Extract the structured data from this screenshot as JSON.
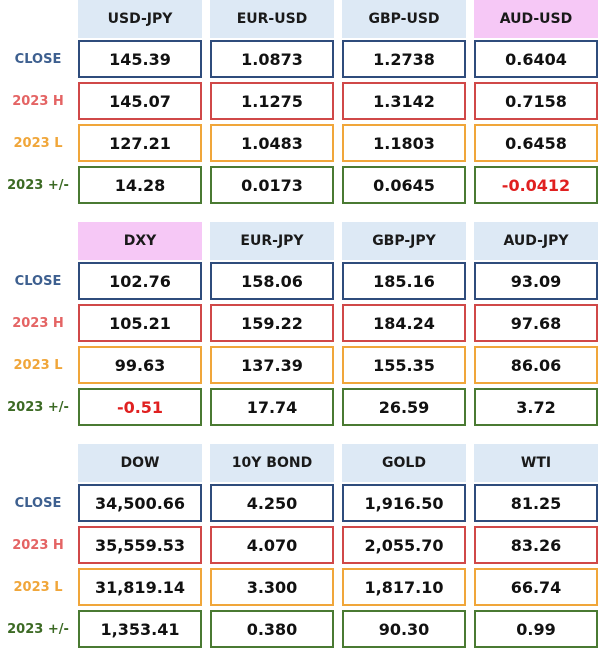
{
  "blocks": [
    {
      "headers": [
        "USD-JPY",
        "EUR-USD",
        "GBP-USD",
        "AUD-USD"
      ],
      "rows": [
        {
          "label": "CLOSE",
          "values": [
            "145.39",
            "1.0873",
            "1.2738",
            "0.6404"
          ]
        },
        {
          "label": "2023 H",
          "values": [
            "145.07",
            "1.1275",
            "1.3142",
            "0.7158"
          ]
        },
        {
          "label": "2023 L",
          "values": [
            "127.21",
            "1.0483",
            "1.1803",
            "0.6458"
          ]
        },
        {
          "label": "2023 +/-",
          "values": [
            "14.28",
            "0.0173",
            "0.0645",
            "-0.0412"
          ]
        }
      ]
    },
    {
      "headers": [
        "DXY",
        "EUR-JPY",
        "GBP-JPY",
        "AUD-JPY"
      ],
      "rows": [
        {
          "label": "CLOSE",
          "values": [
            "102.76",
            "158.06",
            "185.16",
            "93.09"
          ]
        },
        {
          "label": "2023 H",
          "values": [
            "105.21",
            "159.22",
            "184.24",
            "97.68"
          ]
        },
        {
          "label": "2023 L",
          "values": [
            "99.63",
            "137.39",
            "155.35",
            "86.06"
          ]
        },
        {
          "label": "2023 +/-",
          "values": [
            "-0.51",
            "17.74",
            "26.59",
            "3.72"
          ]
        }
      ]
    },
    {
      "headers": [
        "DOW",
        "10Y BOND",
        "GOLD",
        "WTI"
      ],
      "rows": [
        {
          "label": "CLOSE",
          "values": [
            "34,500.66",
            "4.250",
            "1,916.50",
            "81.25"
          ]
        },
        {
          "label": "2023 H",
          "values": [
            "35,559.53",
            "4.070",
            "2,055.70",
            "83.26"
          ]
        },
        {
          "label": "2023 L",
          "values": [
            "31,819.14",
            "3.300",
            "1,817.10",
            "66.74"
          ]
        },
        {
          "label": "2023 +/-",
          "values": [
            "1,353.41",
            "0.380",
            "90.30",
            "0.99"
          ]
        }
      ]
    }
  ]
}
